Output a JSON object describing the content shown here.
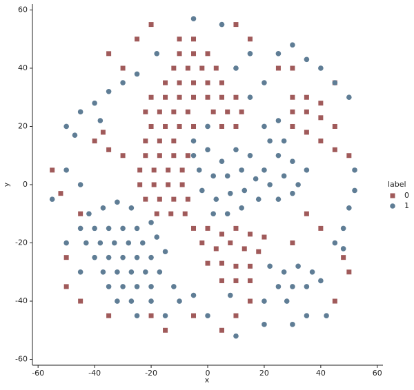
{
  "chart_data": {
    "type": "scatter",
    "x_label": "x",
    "y_label": "y",
    "legend_title": "label",
    "legend": "right",
    "xlim": [
      -62,
      62
    ],
    "ylim": [
      -62,
      62
    ],
    "xticks": [
      -60,
      -40,
      -20,
      0,
      20,
      40,
      60
    ],
    "yticks": [
      -60,
      -40,
      -20,
      0,
      20,
      40,
      60
    ],
    "series": [
      {
        "name": "0",
        "color": "#a05a5a",
        "marker": "square",
        "x": [
          -10,
          -5,
          -10,
          -5,
          0,
          -12,
          -7,
          -2,
          3,
          -15,
          -10,
          -5,
          0,
          5,
          -20,
          -15,
          -10,
          -5,
          0,
          5,
          10,
          -22,
          -17,
          -12,
          -7,
          2,
          7,
          12,
          -20,
          -15,
          -10,
          -5,
          5,
          10,
          -22,
          -17,
          -12,
          -22,
          -17,
          -12,
          -7,
          -24,
          -19,
          -14,
          -9,
          -24,
          -19,
          -14,
          -9,
          -22,
          -17,
          -12,
          -7,
          -18,
          -13,
          -8,
          -5,
          0,
          5,
          10,
          15,
          20,
          -2,
          3,
          8,
          13,
          18,
          0,
          5,
          10,
          15,
          5,
          10,
          15,
          30,
          35,
          40,
          30,
          35,
          40,
          45,
          30,
          35,
          40,
          45,
          25,
          30,
          45,
          50,
          -40,
          -37,
          -35,
          -30,
          -30,
          -35,
          -25,
          -45,
          -50,
          -50,
          -45,
          -35,
          -20,
          -15,
          -5,
          5,
          10,
          15,
          35,
          40,
          30,
          50,
          45,
          -55,
          -52,
          -20,
          10,
          15,
          48
        ],
        "y": [
          50,
          50,
          45,
          45,
          45,
          40,
          40,
          40,
          40,
          35,
          35,
          35,
          35,
          35,
          30,
          30,
          30,
          30,
          30,
          30,
          30,
          25,
          25,
          25,
          25,
          25,
          25,
          25,
          20,
          20,
          20,
          20,
          20,
          20,
          15,
          15,
          15,
          10,
          10,
          10,
          10,
          5,
          5,
          5,
          5,
          0,
          0,
          0,
          0,
          -5,
          -5,
          -5,
          -5,
          -10,
          -10,
          -10,
          -15,
          -15,
          -17,
          -15,
          -17,
          -18,
          -20,
          -22,
          -20,
          -22,
          -23,
          -27,
          -27,
          -28,
          -28,
          -33,
          -33,
          -33,
          30,
          30,
          28,
          25,
          25,
          23,
          20,
          20,
          18,
          15,
          12,
          40,
          40,
          35,
          10,
          15,
          18,
          12,
          10,
          40,
          45,
          50,
          -10,
          -25,
          -35,
          -40,
          -45,
          -45,
          -50,
          -45,
          -50,
          -45,
          -40,
          -10,
          -15,
          -20,
          -30,
          -40,
          5,
          -3,
          55,
          55,
          50,
          -25
        ]
      },
      {
        "name": "1",
        "color": "#5f7d95",
        "marker": "circle",
        "x": [
          -42,
          -37,
          -32,
          -27,
          -45,
          -40,
          -35,
          -30,
          -25,
          -20,
          -43,
          -38,
          -33,
          -28,
          -23,
          -18,
          -40,
          -35,
          -30,
          -25,
          -20,
          -15,
          -37,
          -32,
          -27,
          -22,
          -17,
          -35,
          -30,
          -25,
          -20,
          -12,
          -32,
          -27,
          -20,
          -10,
          -25,
          -15,
          -5,
          0,
          5,
          10,
          15,
          20,
          25,
          30,
          35,
          -3,
          2,
          7,
          12,
          17,
          22,
          27,
          32,
          -2,
          3,
          8,
          13,
          18,
          25,
          30,
          2,
          7,
          12,
          27,
          22,
          20,
          25,
          22,
          27,
          32,
          37,
          25,
          30,
          35,
          40,
          28,
          20,
          42,
          35,
          45,
          48,
          50,
          52,
          52,
          48,
          -50,
          -45,
          -40,
          -35,
          -30,
          -47,
          -38,
          -25,
          -5,
          5,
          -18,
          25,
          30,
          35,
          40,
          45,
          50,
          15,
          10,
          -55,
          -50,
          -45,
          0,
          10,
          20,
          30,
          8,
          -5,
          -50,
          -45,
          15,
          20,
          -5,
          0
        ],
        "y": [
          -10,
          -8,
          -6,
          -8,
          -15,
          -15,
          -15,
          -15,
          -15,
          -13,
          -20,
          -20,
          -20,
          -20,
          -20,
          -18,
          -25,
          -25,
          -25,
          -25,
          -25,
          -23,
          -30,
          -30,
          -30,
          -30,
          -30,
          -35,
          -35,
          -35,
          -35,
          -35,
          -40,
          -40,
          -40,
          -40,
          -45,
          -45,
          10,
          12,
          8,
          12,
          10,
          5,
          10,
          8,
          5,
          5,
          3,
          3,
          5,
          2,
          0,
          3,
          0,
          -2,
          -5,
          -3,
          -2,
          -5,
          -5,
          -3,
          -10,
          -10,
          -8,
          15,
          15,
          20,
          22,
          -28,
          -30,
          -28,
          -30,
          -35,
          -35,
          -35,
          -33,
          -40,
          -40,
          -45,
          -45,
          -20,
          -15,
          -8,
          -2,
          5,
          -22,
          20,
          25,
          28,
          32,
          35,
          17,
          22,
          38,
          57,
          55,
          45,
          45,
          48,
          43,
          40,
          35,
          30,
          45,
          40,
          -5,
          -20,
          -30,
          -45,
          -52,
          -48,
          -48,
          -38,
          -38,
          5,
          0,
          30,
          35,
          15,
          20
        ]
      }
    ]
  }
}
